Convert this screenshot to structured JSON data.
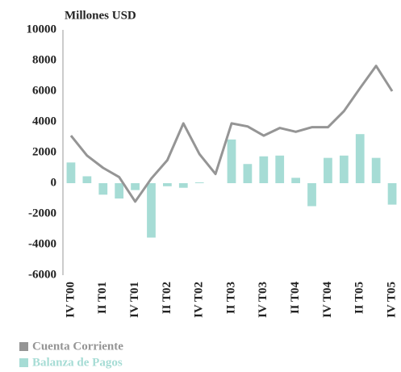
{
  "chart_data": {
    "type": "combo",
    "y_axis_label": "Millones USD",
    "categories": [
      "IV T00",
      null,
      "II T01",
      null,
      "IV T01",
      null,
      "II T02",
      null,
      "IV T02",
      null,
      "II T03",
      null,
      "IV T03",
      null,
      "II T04",
      null,
      "IV T04",
      null,
      "II T05",
      null,
      "IV T05"
    ],
    "series": [
      {
        "name": "Cuenta Corriente",
        "type": "line",
        "color": "#959595",
        "values": [
          3100,
          1800,
          1000,
          400,
          -1200,
          300,
          1500,
          3900,
          1900,
          600,
          3900,
          3700,
          3100,
          3600,
          3350,
          3650,
          3650,
          4700,
          6200,
          7650,
          6000
        ]
      },
      {
        "name": "Balanza de Pagos",
        "type": "bar",
        "color": "#a6dcd5",
        "values": [
          1350,
          450,
          -750,
          -1000,
          -450,
          -3550,
          -200,
          -300,
          50,
          0,
          2850,
          1250,
          1750,
          1800,
          350,
          -1500,
          1650,
          1800,
          3200,
          1650,
          -1400
        ]
      }
    ],
    "ylim": [
      -6000,
      10000
    ],
    "yticks": [
      -6000,
      -4000,
      -2000,
      0,
      2000,
      4000,
      6000,
      8000,
      10000
    ],
    "grid": false,
    "legend": "bottom-left"
  }
}
